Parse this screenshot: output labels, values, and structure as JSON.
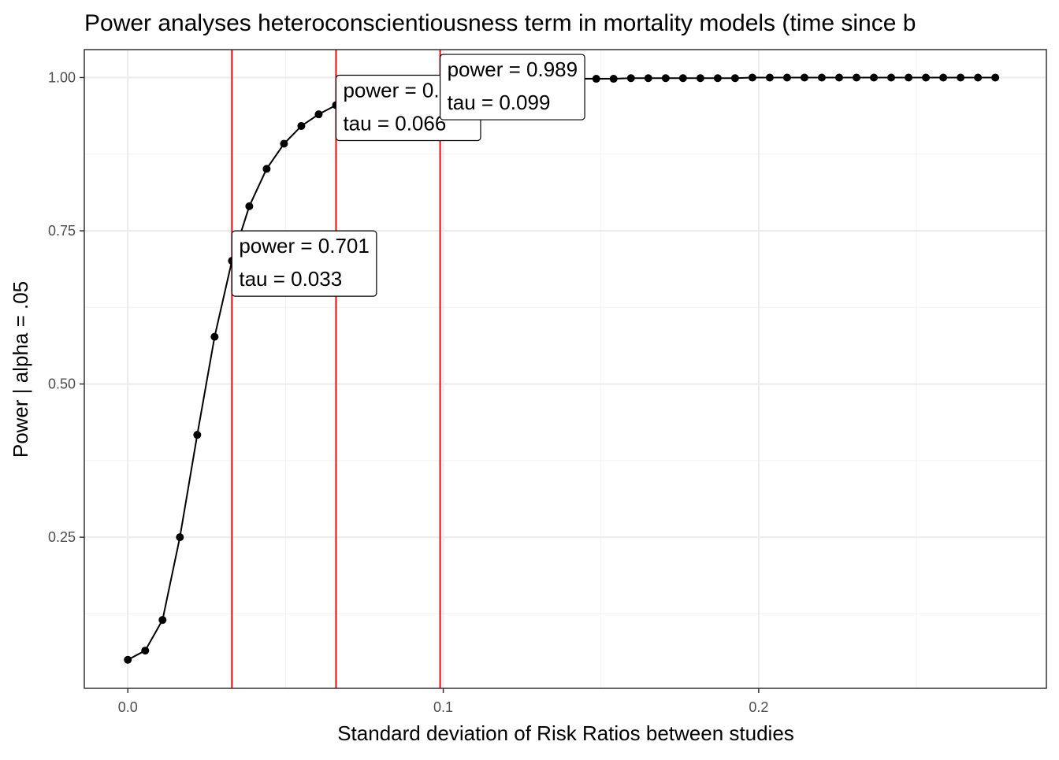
{
  "chart_data": {
    "type": "line",
    "title": "Power analyses heteroconscientiousness term in mortality models (time since b",
    "xlabel": "Standard deviation of Risk Ratios between studies",
    "ylabel": "Power | alpha = .05",
    "xlim": [
      -0.0138,
      0.2912
    ],
    "ylim": [
      0.0034,
      1.0456
    ],
    "x_ticks": [
      0.0,
      0.1,
      0.2
    ],
    "x_tick_labels": [
      "0.0",
      "0.1",
      "0.2"
    ],
    "x_minor_ticks": [
      0.05,
      0.15,
      0.25
    ],
    "y_ticks": [
      0.25,
      0.5,
      0.75,
      1.0
    ],
    "y_tick_labels": [
      "0.25",
      "0.50",
      "0.75",
      "1.00"
    ],
    "y_minor_ticks": [
      0.125,
      0.375,
      0.625,
      0.875
    ],
    "grid": true,
    "series": [
      {
        "x": [
          0.0,
          0.0055,
          0.011,
          0.0165,
          0.022,
          0.0275,
          0.033,
          0.0385,
          0.044,
          0.0495,
          0.055,
          0.0605,
          0.066,
          0.0715,
          0.077,
          0.0825,
          0.088,
          0.0935,
          0.099,
          0.1045,
          0.11,
          0.1155,
          0.121,
          0.1265,
          0.132,
          0.1375,
          0.143,
          0.1485,
          0.154,
          0.1595,
          0.165,
          0.1705,
          0.176,
          0.1815,
          0.187,
          0.1925,
          0.198,
          0.2035,
          0.209,
          0.2145,
          0.22,
          0.2255,
          0.231,
          0.2365,
          0.242,
          0.2475,
          0.253,
          0.2585,
          0.264,
          0.2695,
          0.275
        ],
        "y": [
          0.05,
          0.065,
          0.115,
          0.25,
          0.417,
          0.577,
          0.701,
          0.79,
          0.851,
          0.892,
          0.921,
          0.94,
          0.955,
          0.966,
          0.974,
          0.98,
          0.984,
          0.987,
          0.989,
          0.991,
          0.993,
          0.994,
          0.995,
          0.996,
          0.997,
          0.997,
          0.998,
          0.998,
          0.998,
          0.999,
          0.999,
          0.999,
          0.999,
          0.999,
          0.999,
          0.999,
          1.0,
          1.0,
          1.0,
          1.0,
          1.0,
          1.0,
          1.0,
          1.0,
          1.0,
          1.0,
          1.0,
          1.0,
          1.0,
          1.0,
          1.0
        ],
        "color": "#000000"
      }
    ],
    "vlines": [
      {
        "x": 0.033,
        "color": "#ff0000"
      },
      {
        "x": 0.066,
        "color": "#ff0000"
      },
      {
        "x": 0.099,
        "color": "#ff0000"
      }
    ],
    "annotations": [
      {
        "x": 0.033,
        "y": 0.701,
        "line1": "power = 0.701",
        "line2": "tau =  0.033"
      },
      {
        "x": 0.066,
        "y": 0.955,
        "line1": "power = 0.955",
        "line2": "tau =  0.066"
      },
      {
        "x": 0.099,
        "y": 0.989,
        "line1": "power = 0.989",
        "line2": "tau =  0.099"
      }
    ],
    "colors": {
      "panel_border": "#333333",
      "grid_major": "#ebebeb",
      "grid_minor": "#f2f2f2",
      "series": "#000000",
      "vline": "#ff0000"
    }
  }
}
